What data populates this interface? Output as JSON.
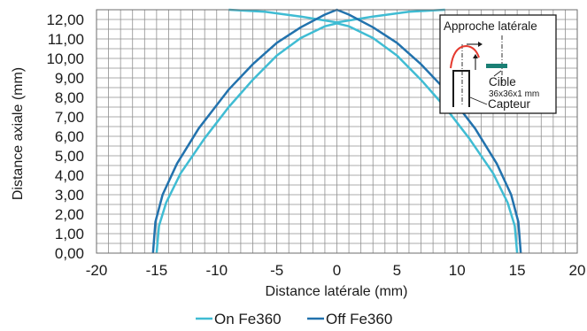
{
  "chart_data": {
    "type": "line",
    "title": "",
    "xlabel": "Distance latérale (mm)",
    "ylabel": "Distance axiale (mm)",
    "xlim": [
      -20,
      20
    ],
    "ylim": [
      0,
      12.5
    ],
    "xticks": [
      "-20",
      "-15",
      "-10",
      "-5",
      "0",
      "5",
      "10",
      "15",
      "20"
    ],
    "yticks": [
      "0,00",
      "1,00",
      "2,00",
      "3,00",
      "4,00",
      "5,00",
      "6,00",
      "7,00",
      "8,00",
      "9,00",
      "10,00",
      "11,00",
      "12,00"
    ],
    "grid": true,
    "legend_position": "bottom",
    "series": [
      {
        "name": "On Fe360",
        "color": "#3fbcd3",
        "segments": [
          {
            "x": [
              -15.0,
              -14.8,
              -14.2,
              -13.0,
              -11.0,
              -9.0,
              -7.0,
              -5.0,
              -3.0,
              -1.0,
              0.0,
              1.0,
              3.0,
              5.0,
              7.0,
              9.0,
              11.0,
              13.0,
              14.2,
              14.8,
              15.0
            ],
            "y": [
              0.0,
              1.4,
              2.6,
              4.1,
              5.9,
              7.5,
              8.9,
              10.15,
              11.05,
              11.65,
              11.8,
              11.65,
              11.05,
              10.15,
              8.9,
              7.5,
              5.9,
              4.1,
              2.6,
              1.4,
              0.0
            ]
          },
          {
            "x": [
              -9.0,
              -6.0,
              -3.0,
              -1.0,
              0.0,
              1.0,
              3.0,
              6.0,
              9.0
            ],
            "y": [
              12.5,
              12.4,
              12.15,
              11.95,
              11.85,
              11.95,
              12.15,
              12.4,
              12.5
            ]
          }
        ]
      },
      {
        "name": "Off Fe360",
        "color": "#2272ad",
        "segments": [
          {
            "x": [
              -15.3,
              -15.1,
              -14.5,
              -13.3,
              -11.5,
              -9.0,
              -7.0,
              -5.0,
              -3.0,
              -1.0,
              0.0,
              1.0,
              3.0,
              5.0,
              7.0,
              9.0,
              11.5,
              13.3,
              14.5,
              15.1,
              15.3
            ],
            "y": [
              0.0,
              1.6,
              3.0,
              4.6,
              6.4,
              8.4,
              9.7,
              10.8,
              11.6,
              12.25,
              12.5,
              12.25,
              11.6,
              10.8,
              9.7,
              8.4,
              6.4,
              4.6,
              3.0,
              1.6,
              0.0
            ]
          }
        ]
      }
    ],
    "inset": {
      "title": "Approche latérale",
      "target_label": "Cible",
      "target_size": "36x36x1 mm",
      "sensor_label": "Capteur"
    }
  }
}
